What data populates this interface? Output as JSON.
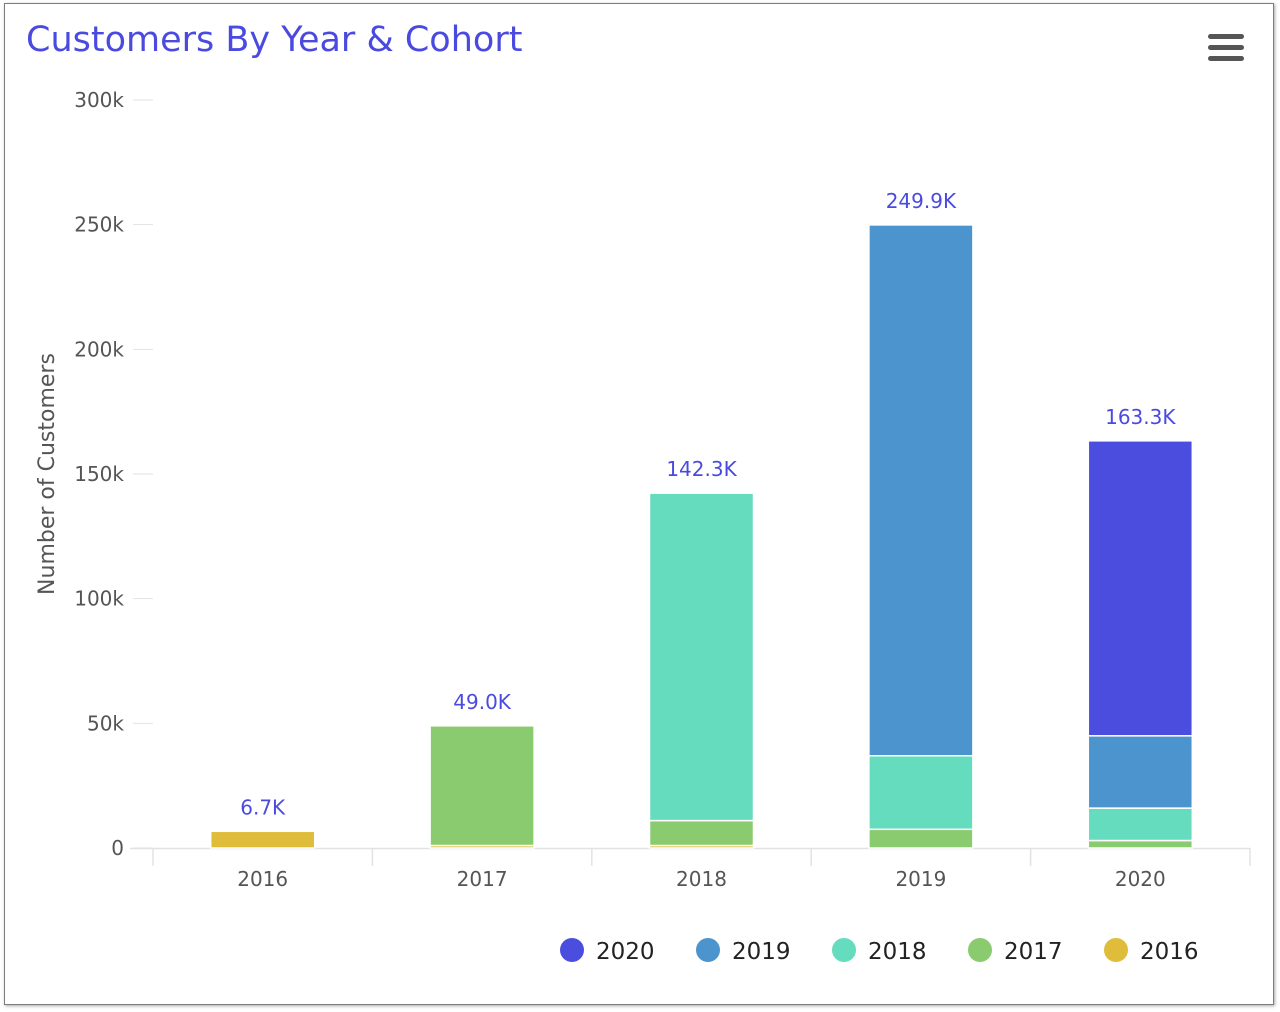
{
  "chart_data": {
    "type": "bar",
    "stacked": true,
    "title": "Customers By Year & Cohort",
    "ylabel": "Number of Customers",
    "xlabel": "",
    "ylim": [
      0,
      300000
    ],
    "yticks": [
      {
        "value": 0,
        "label": "0"
      },
      {
        "value": 50000,
        "label": "50k"
      },
      {
        "value": 100000,
        "label": "100k"
      },
      {
        "value": 150000,
        "label": "150k"
      },
      {
        "value": 200000,
        "label": "200k"
      },
      {
        "value": 250000,
        "label": "250k"
      },
      {
        "value": 300000,
        "label": "300k"
      }
    ],
    "categories": [
      "2016",
      "2017",
      "2018",
      "2019",
      "2020"
    ],
    "series": [
      {
        "name": "2016",
        "color": "#dfbd3a",
        "values": [
          6700,
          1000,
          1000,
          0,
          0
        ]
      },
      {
        "name": "2017",
        "color": "#8bcb6f",
        "values": [
          0,
          48000,
          10000,
          7500,
          3000
        ]
      },
      {
        "name": "2018",
        "color": "#64dcbd",
        "values": [
          0,
          0,
          131300,
          29500,
          13000
        ]
      },
      {
        "name": "2019",
        "color": "#4b94ce",
        "values": [
          0,
          0,
          0,
          212900,
          29000
        ]
      },
      {
        "name": "2020",
        "color": "#4b4ddf",
        "values": [
          0,
          0,
          0,
          0,
          118300
        ]
      }
    ],
    "totals_labels": [
      "6.7K",
      "49.0K",
      "142.3K",
      "249.9K",
      "163.3K"
    ],
    "legend": {
      "placement": "bottom-right",
      "order": [
        "2020",
        "2019",
        "2018",
        "2017",
        "2016"
      ]
    },
    "grid": false
  },
  "toolbar": {
    "menu_icon": "hamburger-menu-icon"
  }
}
